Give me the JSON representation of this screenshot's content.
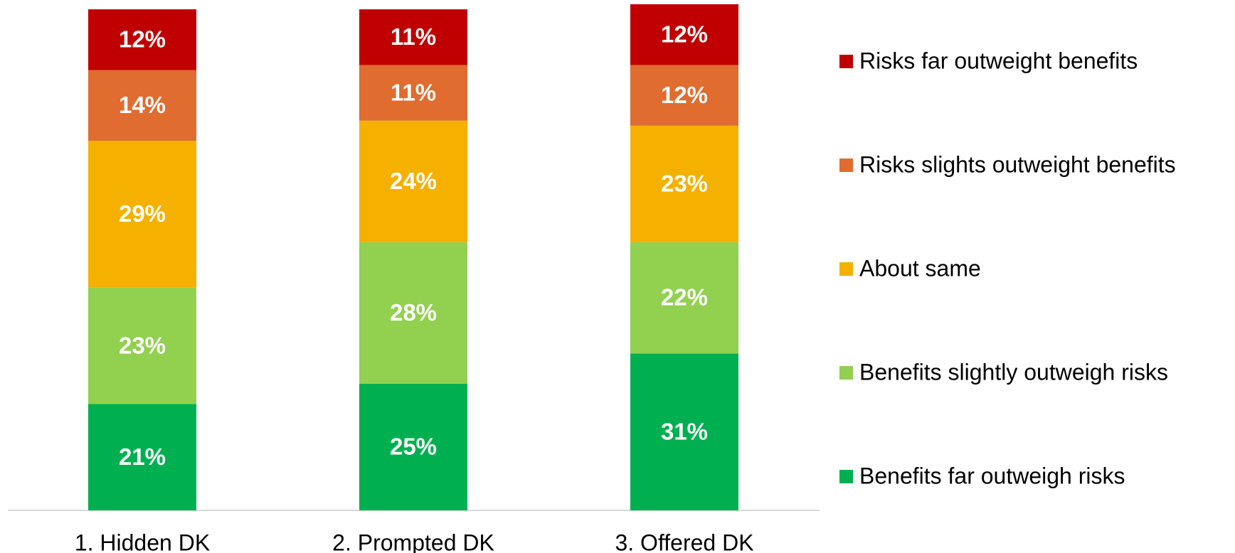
{
  "chart_data": {
    "type": "stacked_bar",
    "categories": [
      "1. Hidden DK",
      "2. Prompted DK",
      "3. Offered DK"
    ],
    "ylim": [
      0,
      100
    ],
    "series": [
      {
        "name": "Benefits far outweigh risks",
        "color": "#00b050",
        "values": [
          21,
          25,
          31
        ],
        "value_labels": [
          "21%",
          "25%",
          "31%"
        ]
      },
      {
        "name": "Benefits slightly outweigh risks",
        "color": "#92d050",
        "values": [
          23,
          28,
          22
        ],
        "value_labels": [
          "23%",
          "28%",
          "22%"
        ]
      },
      {
        "name": "About same",
        "color": "#f5b000",
        "values": [
          29,
          24,
          23
        ],
        "value_labels": [
          "29%",
          "24%",
          "23%"
        ]
      },
      {
        "name": "Risks slights outweight benefits",
        "color": "#e06c30",
        "values": [
          14,
          11,
          12
        ],
        "value_labels": [
          "14%",
          "11%",
          "12%"
        ]
      },
      {
        "name": "Risks far outweight benefits",
        "color": "#c00000",
        "values": [
          12,
          11,
          12
        ],
        "value_labels": [
          "12%",
          "11%",
          "12%"
        ]
      }
    ],
    "legend": "right"
  }
}
